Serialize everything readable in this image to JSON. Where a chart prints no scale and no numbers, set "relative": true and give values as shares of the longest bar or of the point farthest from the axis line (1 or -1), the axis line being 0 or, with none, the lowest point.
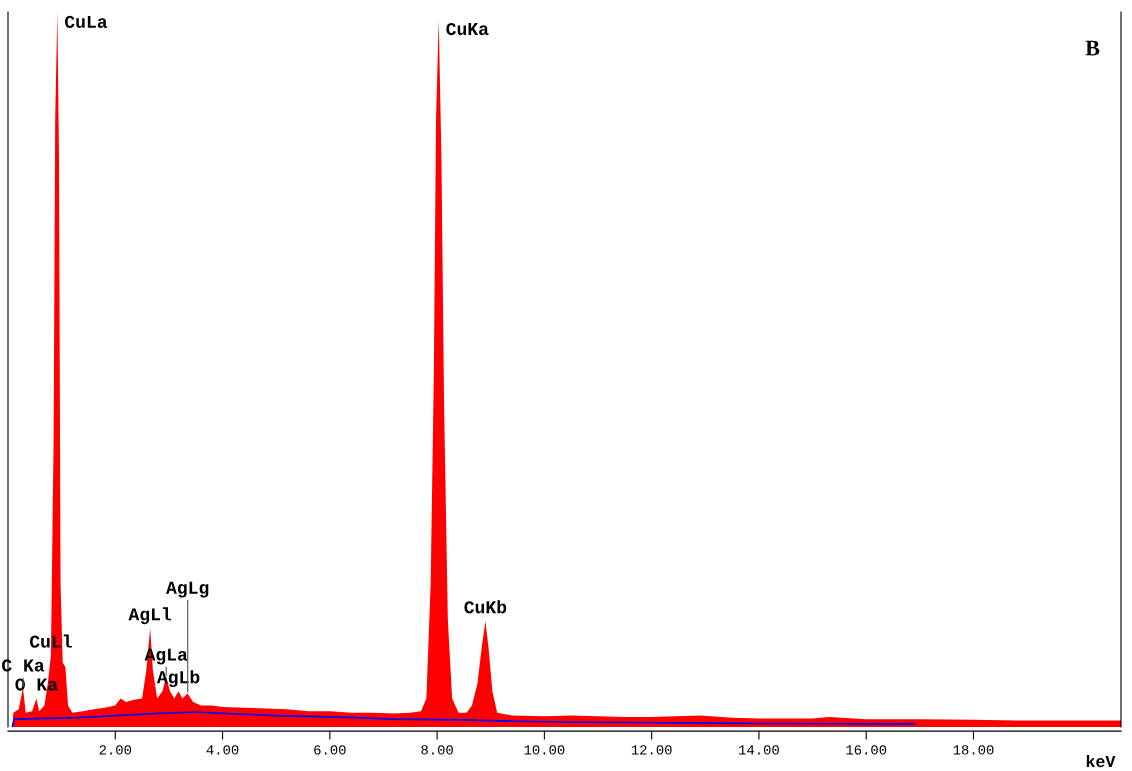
{
  "chart_data": {
    "type": "area",
    "relative": true,
    "xlabel": "keV",
    "xlim": [
      0,
      20.75
    ],
    "xticks": [
      {
        "value": 2,
        "label": "2.00"
      },
      {
        "value": 4,
        "label": "4.00"
      },
      {
        "value": 6,
        "label": "6.00"
      },
      {
        "value": 8,
        "label": "8.00"
      },
      {
        "value": 10,
        "label": "10.00"
      },
      {
        "value": 12,
        "label": "12.00"
      },
      {
        "value": 14,
        "label": "14.00"
      },
      {
        "value": 16,
        "label": "16.00"
      },
      {
        "value": 18,
        "label": "18.00"
      }
    ],
    "grid": false,
    "legend": false,
    "series": [
      {
        "color": "#ff0000",
        "x": [
          0.08,
          0.1,
          0.2,
          0.28,
          0.33,
          0.45,
          0.53,
          0.58,
          0.68,
          0.74,
          0.8,
          0.85,
          0.88,
          0.92,
          0.95,
          0.98,
          1.02,
          1.07,
          1.12,
          1.2,
          1.4,
          1.6,
          1.8,
          2.0,
          2.1,
          2.2,
          2.35,
          2.5,
          2.58,
          2.65,
          2.7,
          2.78,
          2.88,
          2.95,
          3.02,
          3.1,
          3.18,
          3.25,
          3.35,
          3.45,
          3.6,
          3.8,
          4.0,
          4.4,
          4.8,
          5.2,
          5.6,
          6.0,
          6.4,
          6.8,
          7.2,
          7.5,
          7.7,
          7.8,
          7.88,
          7.94,
          7.98,
          8.03,
          8.08,
          8.13,
          8.2,
          8.28,
          8.4,
          8.55,
          8.65,
          8.75,
          8.83,
          8.9,
          8.96,
          9.03,
          9.12,
          9.4,
          10,
          10.5,
          11,
          11.5,
          12,
          12.9,
          13.5,
          14,
          15,
          15.3,
          16,
          17,
          18,
          19,
          20,
          20.75
        ],
        "values": [
          0,
          0.02,
          0.025,
          0.055,
          0.02,
          0.022,
          0.04,
          0.022,
          0.03,
          0.06,
          0.1,
          0.4,
          0.85,
          1,
          0.8,
          0.2,
          0.09,
          0.084,
          0.03,
          0.02,
          0.022,
          0.025,
          0.027,
          0.03,
          0.04,
          0.035,
          0.038,
          0.04,
          0.08,
          0.138,
          0.08,
          0.04,
          0.05,
          0.07,
          0.05,
          0.04,
          0.05,
          0.04,
          0.047,
          0.035,
          0.03,
          0.03,
          0.028,
          0.027,
          0.026,
          0.025,
          0.022,
          0.022,
          0.02,
          0.02,
          0.019,
          0.02,
          0.022,
          0.04,
          0.2,
          0.5,
          0.85,
          0.99,
          0.8,
          0.45,
          0.15,
          0.04,
          0.02,
          0.02,
          0.03,
          0.06,
          0.11,
          0.148,
          0.11,
          0.05,
          0.02,
          0.016,
          0.015,
          0.016,
          0.015,
          0.014,
          0.014,
          0.016,
          0.013,
          0.012,
          0.012,
          0.014,
          0.011,
          0.011,
          0.01,
          0.009,
          0.009,
          0.009
        ]
      },
      {
        "type": "line",
        "color": "#0000ff",
        "x": [
          0.08,
          0.12,
          1.3,
          2.5,
          3.5,
          4.0,
          5,
          6.5,
          7.2,
          8.5,
          9.5,
          10.3,
          13.7,
          16.9
        ],
        "values": [
          0,
          0.011,
          0.013,
          0.018,
          0.021,
          0.019,
          0.016,
          0.013,
          0.011,
          0.01,
          0.008,
          0.007,
          0.005,
          0.004
        ]
      }
    ],
    "annotations": [
      "B",
      {
        "text": "CuLa",
        "x": 0.92,
        "y": 1
      },
      {
        "text": "CuKa",
        "x": 8.03,
        "y": 0.99
      },
      {
        "text": "CuLl",
        "x": 0.8,
        "y": 0.1
      },
      {
        "text": "AgLb",
        "x": 3.18,
        "y": 0.05
      },
      {
        "text": "AgLl",
        "x": 2.65,
        "y": 0.138
      },
      {
        "text": "O Ka",
        "x": 0.53,
        "y": 0.04
      },
      {
        "text": "C Ka",
        "x": 0.28,
        "y": 0.055
      },
      {
        "text": "AgLa",
        "x": 2.95,
        "y": 0.07
      },
      {
        "text": "AgLg",
        "x": 3.35,
        "y": 0.047
      },
      {
        "text": "CuKb",
        "x": 8.9,
        "y": 0.148
      }
    ]
  }
}
